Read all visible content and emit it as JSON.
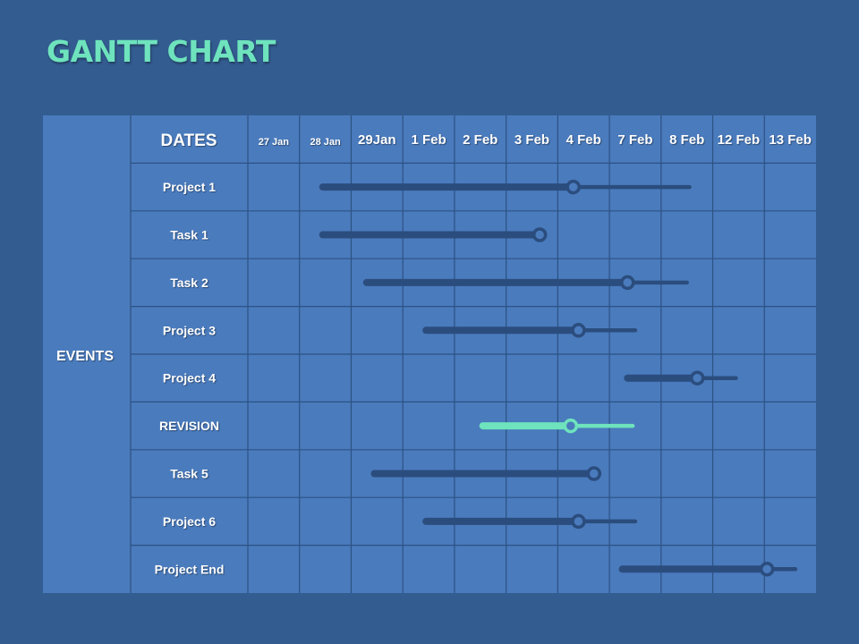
{
  "title": "GANTT CHART",
  "events_label": "EVENTS",
  "dates_label": "DATES",
  "colors": {
    "background": "#335c91",
    "cell": "#4a7bbd",
    "grid": "#2c5283",
    "bar": "#2b4d7e",
    "highlight": "#6ee3bd",
    "text": "#ffffff"
  },
  "chart_data": {
    "type": "gantt",
    "dates": [
      "27 Jan",
      "28 Jan",
      "29Jan",
      "1 Feb",
      "2 Feb",
      "3 Feb",
      "4 Feb",
      "7 Feb",
      "8 Feb",
      "12 Feb",
      "13 Feb"
    ],
    "rows": [
      {
        "label": "Project 1",
        "start": 1.45,
        "marker": 6.3,
        "end": 8.55,
        "highlight": false
      },
      {
        "label": "Task 1",
        "start": 1.45,
        "marker": 5.65,
        "end": 5.65,
        "highlight": false
      },
      {
        "label": "Task 2",
        "start": 2.3,
        "marker": 7.35,
        "end": 8.5,
        "highlight": false
      },
      {
        "label": "Project 3",
        "start": 3.45,
        "marker": 6.4,
        "end": 7.5,
        "highlight": false
      },
      {
        "label": "Project 4",
        "start": 7.35,
        "marker": 8.7,
        "end": 9.45,
        "highlight": false
      },
      {
        "label": "REVISION",
        "start": 4.55,
        "marker": 6.25,
        "end": 7.45,
        "highlight": true
      },
      {
        "label": "Task 5",
        "start": 2.45,
        "marker": 6.7,
        "end": 6.7,
        "highlight": false
      },
      {
        "label": "Project 6",
        "start": 3.45,
        "marker": 6.4,
        "end": 7.5,
        "highlight": false
      },
      {
        "label": "Project End",
        "start": 7.25,
        "marker": 10.05,
        "end": 10.6,
        "highlight": false
      }
    ]
  }
}
